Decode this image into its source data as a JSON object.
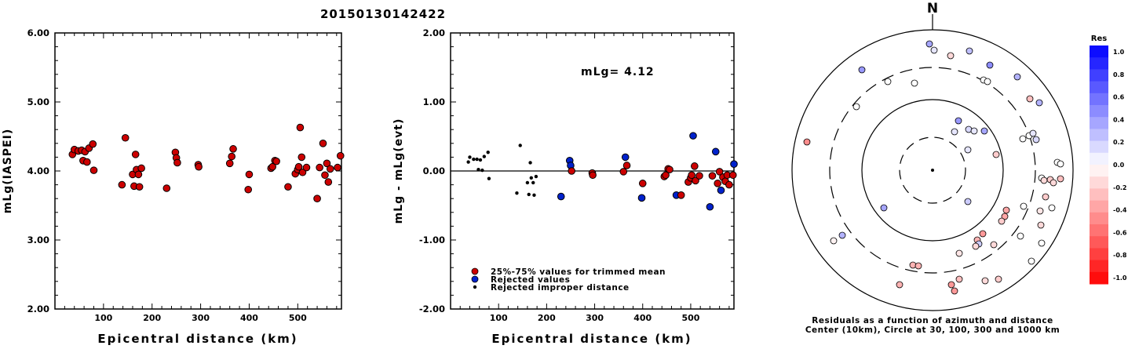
{
  "title": "20150130142422",
  "chart_data": [
    {
      "type": "scatter",
      "id": "left",
      "ylabel": "mLg(IASPEI)",
      "xlabel": "Epicentral distance (km)",
      "xlim": [
        0,
        590
      ],
      "ylim": [
        2.0,
        6.0
      ],
      "xticks": [
        100,
        200,
        300,
        400,
        500
      ],
      "yticks": [
        "2.00",
        "3.00",
        "4.00",
        "5.00",
        "6.00"
      ],
      "points": [
        [
          36,
          4.24
        ],
        [
          40,
          4.31
        ],
        [
          48,
          4.29
        ],
        [
          55,
          4.3
        ],
        [
          58,
          4.15
        ],
        [
          62,
          4.28
        ],
        [
          66,
          4.13
        ],
        [
          70,
          4.33
        ],
        [
          78,
          4.39
        ],
        [
          80,
          4.01
        ],
        [
          138,
          3.8
        ],
        [
          145,
          4.48
        ],
        [
          160,
          3.95
        ],
        [
          163,
          3.78
        ],
        [
          166,
          4.24
        ],
        [
          168,
          4.02
        ],
        [
          172,
          3.95
        ],
        [
          174,
          3.77
        ],
        [
          178,
          4.04
        ],
        [
          230,
          3.75
        ],
        [
          248,
          4.27
        ],
        [
          250,
          4.19
        ],
        [
          252,
          4.12
        ],
        [
          295,
          4.09
        ],
        [
          296,
          4.06
        ],
        [
          360,
          4.11
        ],
        [
          364,
          4.21
        ],
        [
          367,
          4.32
        ],
        [
          398,
          3.73
        ],
        [
          400,
          3.95
        ],
        [
          445,
          4.04
        ],
        [
          448,
          4.06
        ],
        [
          453,
          4.15
        ],
        [
          456,
          4.14
        ],
        [
          480,
          3.77
        ],
        [
          495,
          3.96
        ],
        [
          500,
          4.02
        ],
        [
          502,
          4.06
        ],
        [
          505,
          4.63
        ],
        [
          508,
          4.2
        ],
        [
          510,
          3.98
        ],
        [
          518,
          4.05
        ],
        [
          540,
          3.6
        ],
        [
          545,
          4.05
        ],
        [
          552,
          4.4
        ],
        [
          556,
          3.94
        ],
        [
          560,
          4.11
        ],
        [
          563,
          3.84
        ],
        [
          567,
          4.03
        ],
        [
          582,
          4.05
        ],
        [
          588,
          4.22
        ]
      ]
    },
    {
      "type": "scatter",
      "id": "middle",
      "ylabel": "mLg - mLg(evt)",
      "xlabel": "Epicentral distance (km)",
      "xlim": [
        0,
        590
      ],
      "ylim": [
        -2.0,
        2.0
      ],
      "xticks": [
        100,
        200,
        300,
        400,
        500
      ],
      "yticks": [
        "-2.00",
        "-1.00",
        "0.00",
        "1.00",
        "2.00"
      ],
      "annotation": "mLg= 4.12",
      "legend": [
        {
          "label": "25%-75% values for trimmed mean",
          "color": "#cc0000"
        },
        {
          "label": "Rejected values",
          "color": "#0022cc"
        },
        {
          "label": "Rejected improper distance",
          "color": "#000000"
        }
      ],
      "series": [
        {
          "kind": "small",
          "points": [
            [
              37,
              0.13
            ],
            [
              40,
              0.2
            ],
            [
              48,
              0.17
            ],
            [
              55,
              0.17
            ],
            [
              58,
              0.02
            ],
            [
              62,
              0.16
            ],
            [
              66,
              0.01
            ],
            [
              70,
              0.21
            ],
            [
              78,
              0.27
            ],
            [
              80,
              -0.11
            ],
            [
              138,
              -0.32
            ],
            [
              145,
              0.37
            ],
            [
              160,
              -0.17
            ],
            [
              163,
              -0.34
            ],
            [
              166,
              0.12
            ],
            [
              168,
              -0.1
            ],
            [
              172,
              -0.17
            ],
            [
              174,
              -0.35
            ],
            [
              178,
              -0.08
            ]
          ]
        },
        {
          "kind": "blue",
          "points": [
            [
              230,
              -0.37
            ],
            [
              248,
              0.15
            ],
            [
              250,
              0.08
            ],
            [
              364,
              0.2
            ],
            [
              398,
              -0.39
            ],
            [
              470,
              -0.35
            ],
            [
              505,
              0.51
            ],
            [
              540,
              -0.52
            ],
            [
              552,
              0.28
            ],
            [
              563,
              -0.28
            ],
            [
              590,
              0.1
            ]
          ]
        },
        {
          "kind": "red",
          "points": [
            [
              252,
              0.0
            ],
            [
              295,
              -0.03
            ],
            [
              296,
              -0.06
            ],
            [
              360,
              -0.01
            ],
            [
              367,
              0.08
            ],
            [
              400,
              -0.18
            ],
            [
              445,
              -0.08
            ],
            [
              448,
              -0.06
            ],
            [
              453,
              0.03
            ],
            [
              456,
              0.02
            ],
            [
              480,
              -0.35
            ],
            [
              495,
              -0.16
            ],
            [
              500,
              -0.1
            ],
            [
              502,
              -0.06
            ],
            [
              508,
              0.07
            ],
            [
              510,
              -0.14
            ],
            [
              518,
              -0.07
            ],
            [
              545,
              -0.07
            ],
            [
              556,
              -0.18
            ],
            [
              560,
              -0.01
            ],
            [
              567,
              -0.09
            ],
            [
              572,
              -0.15
            ],
            [
              576,
              -0.06
            ],
            [
              580,
              -0.2
            ],
            [
              588,
              -0.06
            ]
          ]
        }
      ]
    },
    {
      "type": "polar-scatter",
      "id": "polar",
      "north_label": "N",
      "caption_line1": "Residuals as a function of azimuth and distance",
      "caption_line2": "Center (10km), Circle at 30, 100, 300 and 1000 km",
      "colorbar_title": "Res",
      "colorbar_ticks": [
        "1.0",
        "0.8",
        "0.6",
        "0.4",
        "0.2",
        "0.0",
        "-0.2",
        "-0.4",
        "-0.6",
        "-0.8",
        "-1.0"
      ],
      "points": [
        [
          1184,
          56,
          0.35
        ],
        [
          1190,
          64,
          0.1
        ],
        [
          1211,
          71,
          -0.15
        ],
        [
          1235,
          65,
          0.25
        ],
        [
          1261,
          83,
          0.45
        ],
        [
          1098,
          89,
          0.4
        ],
        [
          1131,
          104,
          0.0
        ],
        [
          1165,
          106,
          0.0
        ],
        [
          1253,
          102,
          0.0
        ],
        [
          1258,
          104,
          0.0
        ],
        [
          1296,
          98,
          0.3
        ],
        [
          1312,
          126,
          -0.25
        ],
        [
          1324,
          131,
          0.3
        ],
        [
          1091,
          136,
          0.0
        ],
        [
          1221,
          154,
          0.4
        ],
        [
          1216,
          168,
          0.1
        ],
        [
          1234,
          165,
          0.15
        ],
        [
          1241,
          167,
          0.1
        ],
        [
          1254,
          167,
          0.35
        ],
        [
          1028,
          181,
          -0.45
        ],
        [
          1303,
          177,
          0.0
        ],
        [
          1311,
          173,
          0.0
        ],
        [
          1316,
          170,
          0.1
        ],
        [
          1320,
          178,
          0.15
        ],
        [
          1233,
          191,
          0.1
        ],
        [
          1269,
          197,
          -0.2
        ],
        [
          1347,
          207,
          0.0
        ],
        [
          1351,
          209,
          0.0
        ],
        [
          1327,
          227,
          0.0
        ],
        [
          1330,
          230,
          -0.15
        ],
        [
          1338,
          229,
          -0.2
        ],
        [
          1342,
          233,
          -0.15
        ],
        [
          1351,
          228,
          -0.25
        ],
        [
          1332,
          251,
          -0.2
        ],
        [
          1233,
          257,
          0.2
        ],
        [
          1340,
          265,
          0.0
        ],
        [
          1304,
          263,
          0.0
        ],
        [
          1282,
          268,
          -0.35
        ],
        [
          1325,
          269,
          -0.1
        ],
        [
          1126,
          265,
          0.35
        ],
        [
          1280,
          276,
          -0.35
        ],
        [
          1276,
          282,
          -0.2
        ],
        [
          1326,
          287,
          -0.15
        ],
        [
          1300,
          301,
          0.0
        ],
        [
          1073,
          300,
          0.3
        ],
        [
          1062,
          307,
          -0.05
        ],
        [
          1252,
          298,
          -0.4
        ],
        [
          1245,
          306,
          -0.3
        ],
        [
          1247,
          311,
          0.2
        ],
        [
          1243,
          314,
          -0.15
        ],
        [
          1266,
          312,
          -0.15
        ],
        [
          1327,
          310,
          0.0
        ],
        [
          1222,
          323,
          -0.1
        ],
        [
          1314,
          333,
          0.0
        ],
        [
          1163,
          338,
          -0.3
        ],
        [
          1170,
          339,
          -0.3
        ],
        [
          1222,
          356,
          -0.25
        ],
        [
          1255,
          358,
          -0.15
        ],
        [
          1272,
          356,
          -0.2
        ],
        [
          1146,
          363,
          -0.3
        ],
        [
          1212,
          363,
          -0.4
        ],
        [
          1216,
          371,
          -0.4
        ]
      ]
    }
  ]
}
